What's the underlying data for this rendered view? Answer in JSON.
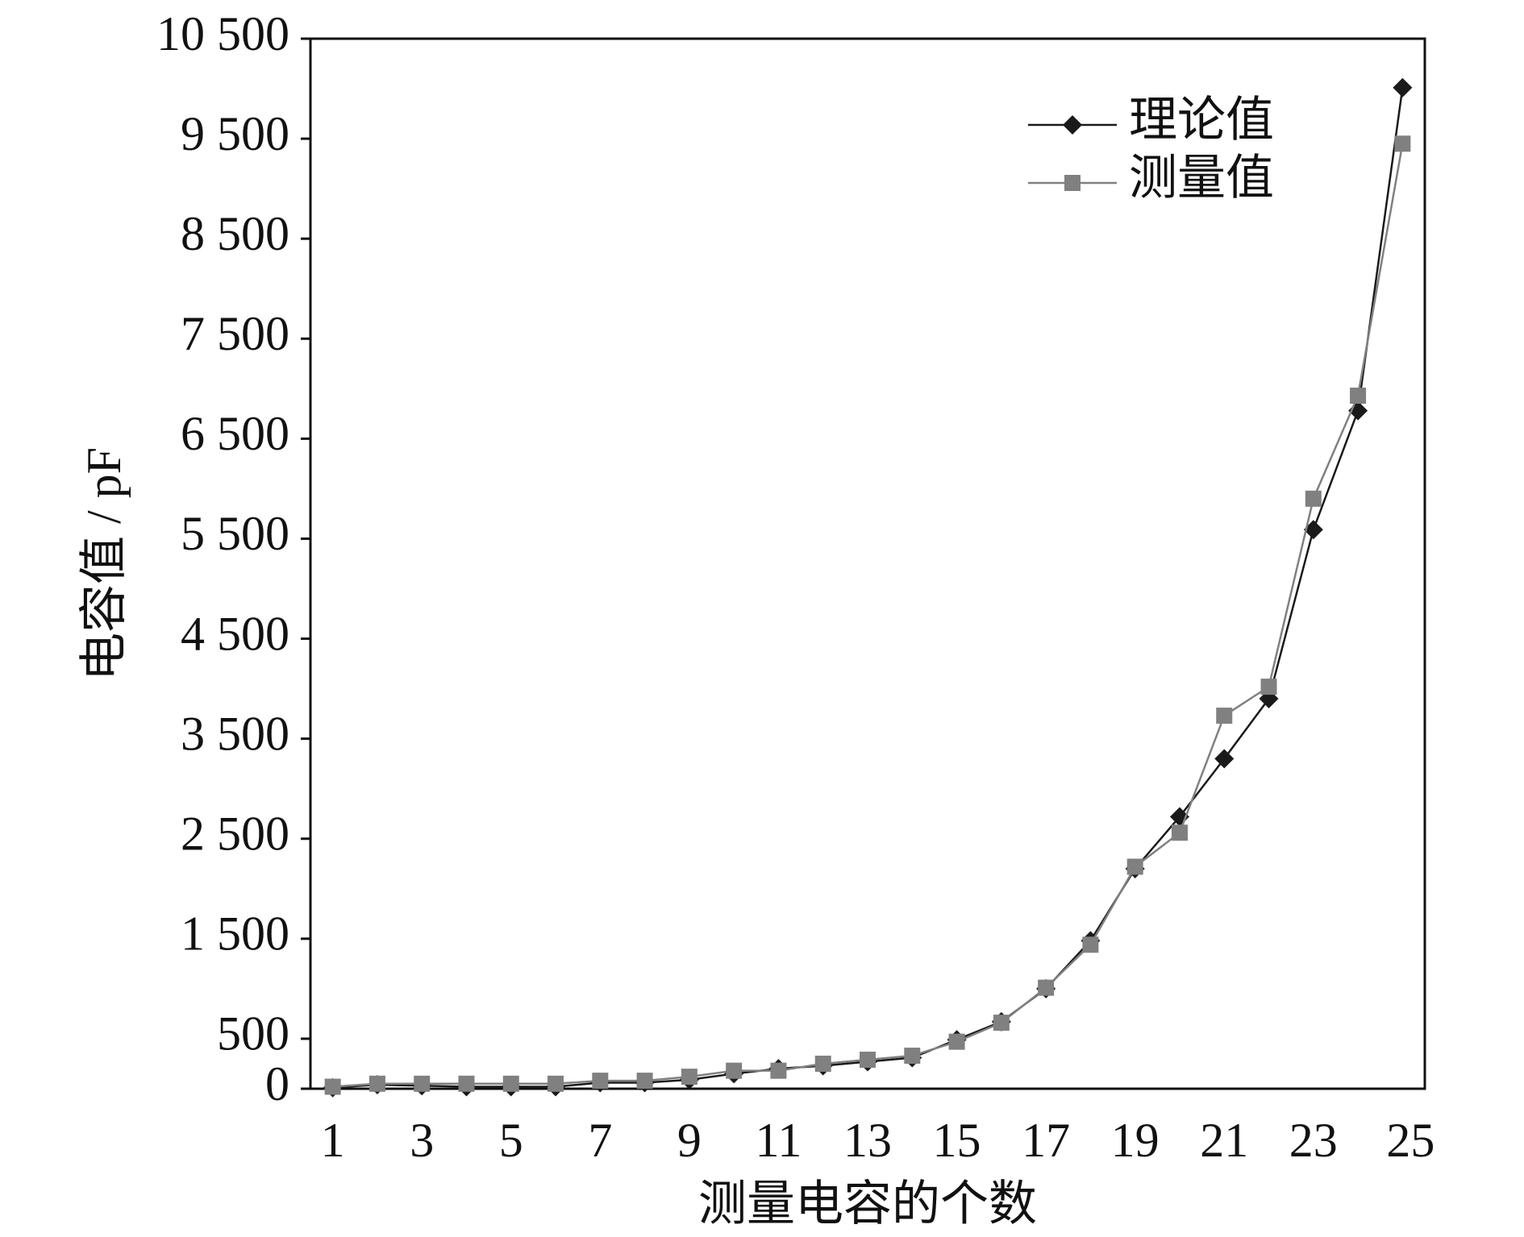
{
  "chart_data": {
    "type": "line",
    "x_label": "测量电容的个数",
    "y_label": "电容值 / pF",
    "categories": [
      "1",
      null,
      "3",
      null,
      "5",
      null,
      "7",
      null,
      "9",
      null,
      "11",
      null,
      "13",
      null,
      "15",
      null,
      "17",
      null,
      "19",
      null,
      "21",
      null,
      "23",
      null,
      "25"
    ],
    "series": [
      {
        "name": "理论值",
        "color": "#1a1a1a",
        "marker": "diamond",
        "values": [
          10,
          40,
          30,
          20,
          20,
          20,
          60,
          60,
          90,
          150,
          200,
          230,
          270,
          310,
          490,
          670,
          1000,
          1480,
          2200,
          2720,
          3300,
          3900,
          5590,
          6780,
          10010
        ]
      },
      {
        "name": "测量值",
        "color": "#808080",
        "marker": "square",
        "values": [
          20,
          50,
          50,
          50,
          50,
          50,
          80,
          80,
          120,
          180,
          180,
          250,
          290,
          330,
          470,
          660,
          1010,
          1440,
          2220,
          2560,
          3730,
          4020,
          5900,
          6930,
          9450
        ]
      }
    ],
    "ylim": [
      0,
      10500
    ],
    "yticks": [
      0,
      500,
      {
        "value": 1500,
        "label": "1 500"
      },
      {
        "value": 2500,
        "label": "2 500"
      },
      {
        "value": 3500,
        "label": "3 500"
      },
      {
        "value": 4500,
        "label": "4 500"
      },
      {
        "value": 5500,
        "label": "5 500"
      },
      {
        "value": 6500,
        "label": "6 500"
      },
      {
        "value": 7500,
        "label": "7 500"
      },
      {
        "value": 8500,
        "label": "8 500"
      },
      {
        "value": 9500,
        "label": "9 500"
      },
      {
        "value": 10500,
        "label": "10 500"
      }
    ],
    "legend": "upper right"
  }
}
